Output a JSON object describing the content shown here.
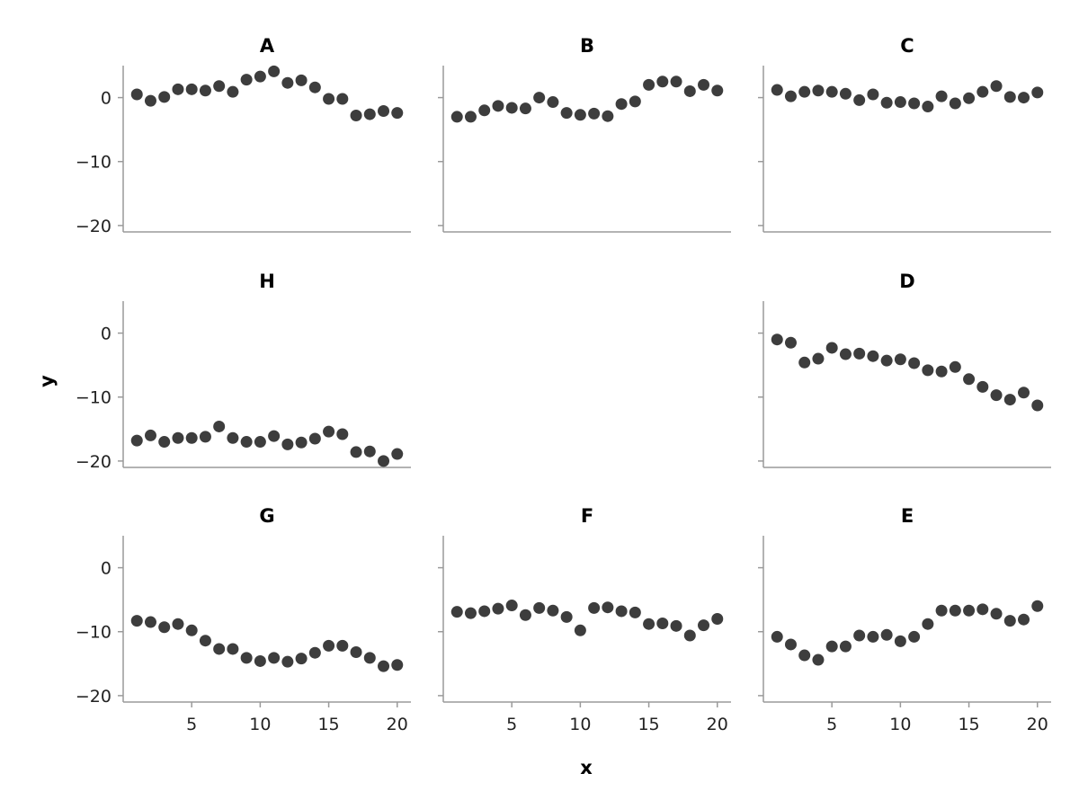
{
  "figure": {
    "xlabel": "x",
    "ylabel": "y"
  },
  "chart_data": {
    "type": "scatter",
    "xlim": [
      0,
      21
    ],
    "ylim": [
      -21,
      5
    ],
    "xticks": [
      5,
      10,
      15,
      20
    ],
    "yticks": [
      0,
      -10,
      -20
    ],
    "grid": false,
    "point_color": "#3d3d3d",
    "panels": [
      {
        "title": "A",
        "row": 0,
        "col": 0,
        "x": [
          1,
          2,
          3,
          4,
          5,
          6,
          7,
          8,
          9,
          10,
          11,
          12,
          13,
          14,
          15,
          16,
          17,
          18,
          19,
          20
        ],
        "y": [
          0.5,
          -0.5,
          0.1,
          1.3,
          1.3,
          1.1,
          1.8,
          0.9,
          2.8,
          3.3,
          4.1,
          2.3,
          2.7,
          1.6,
          -0.2,
          -0.2,
          -2.8,
          -2.6,
          -2.1,
          -2.4
        ]
      },
      {
        "title": "B",
        "row": 0,
        "col": 1,
        "x": [
          1,
          2,
          3,
          4,
          5,
          6,
          7,
          8,
          9,
          10,
          11,
          12,
          13,
          14,
          15,
          16,
          17,
          18,
          19,
          20
        ],
        "y": [
          -3.0,
          -3.0,
          -2.0,
          -1.3,
          -1.6,
          -1.7,
          0.0,
          -0.7,
          -2.4,
          -2.7,
          -2.5,
          -2.9,
          -1.0,
          -0.6,
          2.0,
          2.5,
          2.5,
          1.0,
          2.0,
          1.1
        ]
      },
      {
        "title": "C",
        "row": 0,
        "col": 2,
        "x": [
          1,
          2,
          3,
          4,
          5,
          6,
          7,
          8,
          9,
          10,
          11,
          12,
          13,
          14,
          15,
          16,
          17,
          18,
          19,
          20
        ],
        "y": [
          1.2,
          0.2,
          0.9,
          1.1,
          0.9,
          0.6,
          -0.4,
          0.5,
          -0.8,
          -0.7,
          -0.9,
          -1.4,
          0.2,
          -0.9,
          -0.1,
          0.9,
          1.8,
          0.1,
          0.0,
          0.8
        ]
      },
      {
        "title": "H",
        "row": 1,
        "col": 0,
        "x": [
          1,
          2,
          3,
          4,
          5,
          6,
          7,
          8,
          9,
          10,
          11,
          12,
          13,
          14,
          15,
          16,
          17,
          18,
          19,
          20
        ],
        "y": [
          -16.8,
          -16.0,
          -17.0,
          -16.4,
          -16.4,
          -16.2,
          -14.6,
          -16.4,
          -17.0,
          -17.0,
          -16.1,
          -17.4,
          -17.1,
          -16.5,
          -15.4,
          -15.8,
          -18.6,
          -18.5,
          -20.0,
          -18.9
        ]
      },
      {
        "title": "D",
        "row": 1,
        "col": 2,
        "x": [
          1,
          2,
          3,
          4,
          5,
          6,
          7,
          8,
          9,
          10,
          11,
          12,
          13,
          14,
          15,
          16,
          17,
          18,
          19,
          20
        ],
        "y": [
          -1.0,
          -1.5,
          -4.6,
          -4.0,
          -2.3,
          -3.3,
          -3.2,
          -3.6,
          -4.3,
          -4.1,
          -4.7,
          -5.8,
          -6.0,
          -5.3,
          -7.2,
          -8.4,
          -9.7,
          -10.4,
          -9.3,
          -11.3
        ]
      },
      {
        "title": "G",
        "row": 2,
        "col": 0,
        "x": [
          1,
          2,
          3,
          4,
          5,
          6,
          7,
          8,
          9,
          10,
          11,
          12,
          13,
          14,
          15,
          16,
          17,
          18,
          19,
          20
        ],
        "y": [
          -8.3,
          -8.5,
          -9.3,
          -8.8,
          -9.8,
          -11.4,
          -12.7,
          -12.7,
          -14.1,
          -14.6,
          -14.1,
          -14.7,
          -14.2,
          -13.3,
          -12.2,
          -12.2,
          -13.2,
          -14.1,
          -15.4,
          -15.2
        ]
      },
      {
        "title": "F",
        "row": 2,
        "col": 1,
        "x": [
          1,
          2,
          3,
          4,
          5,
          6,
          7,
          8,
          9,
          10,
          11,
          12,
          13,
          14,
          15,
          16,
          17,
          18,
          19,
          20
        ],
        "y": [
          -6.9,
          -7.1,
          -6.8,
          -6.4,
          -5.9,
          -7.4,
          -6.3,
          -6.7,
          -7.7,
          -9.8,
          -6.3,
          -6.2,
          -6.8,
          -7.0,
          -8.8,
          -8.7,
          -9.1,
          -10.6,
          -9.0,
          -8.0
        ]
      },
      {
        "title": "E",
        "row": 2,
        "col": 2,
        "x": [
          1,
          2,
          3,
          4,
          5,
          6,
          7,
          8,
          9,
          10,
          11,
          12,
          13,
          14,
          15,
          16,
          17,
          18,
          19,
          20
        ],
        "y": [
          -10.8,
          -12.0,
          -13.7,
          -14.4,
          -12.3,
          -12.3,
          -10.6,
          -10.8,
          -10.5,
          -11.5,
          -10.8,
          -8.8,
          -6.7,
          -6.7,
          -6.7,
          -6.5,
          -7.2,
          -8.3,
          -8.1,
          -6.0
        ]
      }
    ]
  }
}
